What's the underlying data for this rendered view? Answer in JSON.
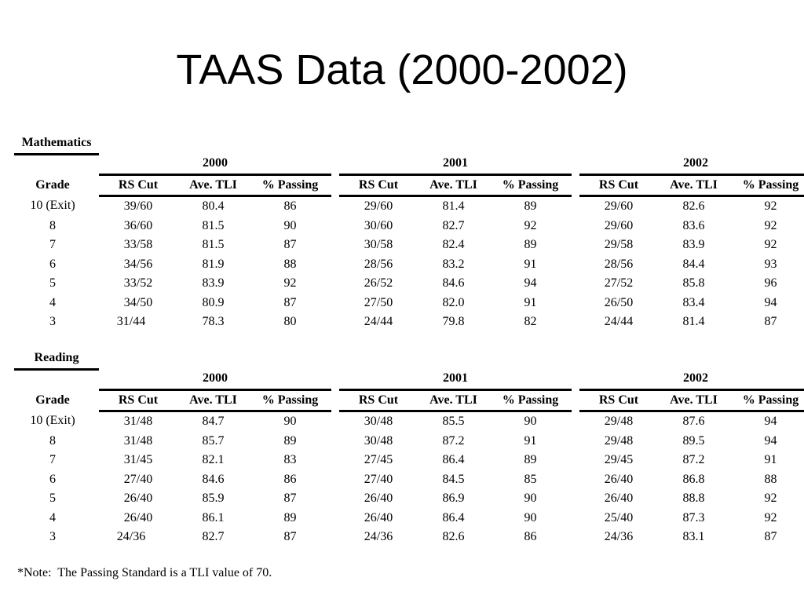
{
  "title": "TAAS Data (2000-2002)",
  "sections": [
    {
      "name": "Mathematics",
      "years": [
        "2000",
        "2001",
        "2002"
      ],
      "headers": [
        "Grade",
        "RS Cut",
        "Ave. TLI",
        "% Passing",
        "RS Cut",
        "Ave. TLI",
        "% Passing",
        "RS Cut",
        "Ave. TLI",
        "% Passing"
      ],
      "rows": [
        [
          "10 (Exit)",
          "39/60",
          "80.4",
          "86",
          "29/60",
          "81.4",
          "89",
          "29/60",
          "82.6",
          "92"
        ],
        [
          "8",
          "36/60",
          "81.5",
          "90",
          "30/60",
          "82.7",
          "92",
          "29/60",
          "83.6",
          "92"
        ],
        [
          "7",
          "33/58",
          "81.5",
          "87",
          "30/58",
          "82.4",
          "89",
          "29/58",
          "83.9",
          "92"
        ],
        [
          "6",
          "34/56",
          "81.9",
          "88",
          "28/56",
          "83.2",
          "91",
          "28/56",
          "84.4",
          "93"
        ],
        [
          "5",
          "33/52",
          "83.9",
          "92",
          "26/52",
          "84.6",
          "94",
          "27/52",
          "85.8",
          "96"
        ],
        [
          "4",
          "34/50",
          "80.9",
          "87",
          "27/50",
          "82.0",
          "91",
          "26/50",
          "83.4",
          "94"
        ],
        [
          "3",
          "31/44",
          "78.3",
          "80",
          "24/44",
          "79.8",
          "82",
          "24/44",
          "81.4",
          "87"
        ]
      ]
    },
    {
      "name": "Reading",
      "years": [
        "2000",
        "2001",
        "2002"
      ],
      "headers": [
        "Grade",
        "RS Cut",
        "Ave. TLI",
        "% Passing",
        "RS Cut",
        "Ave. TLI",
        "% Passing",
        "RS Cut",
        "Ave. TLI",
        "% Passing"
      ],
      "rows": [
        [
          "10 (Exit)",
          "31/48",
          "84.7",
          "90",
          "30/48",
          "85.5",
          "90",
          "29/48",
          "87.6",
          "94"
        ],
        [
          "8",
          "31/48",
          "85.7",
          "89",
          "30/48",
          "87.2",
          "91",
          "29/48",
          "89.5",
          "94"
        ],
        [
          "7",
          "31/45",
          "82.1",
          "83",
          "27/45",
          "86.4",
          "89",
          "29/45",
          "87.2",
          "91"
        ],
        [
          "6",
          "27/40",
          "84.6",
          "86",
          "27/40",
          "84.5",
          "85",
          "26/40",
          "86.8",
          "88"
        ],
        [
          "5",
          "26/40",
          "85.9",
          "87",
          "26/40",
          "86.9",
          "90",
          "26/40",
          "88.8",
          "92"
        ],
        [
          "4",
          "26/40",
          "86.1",
          "89",
          "26/40",
          "86.4",
          "90",
          "25/40",
          "87.3",
          "92"
        ],
        [
          "3",
          "24/36",
          "82.7",
          "87",
          "24/36",
          "82.6",
          "86",
          "24/36",
          "83.1",
          "87"
        ]
      ]
    }
  ],
  "note": "*Note:  The Passing Standard is a TLI value of 70."
}
